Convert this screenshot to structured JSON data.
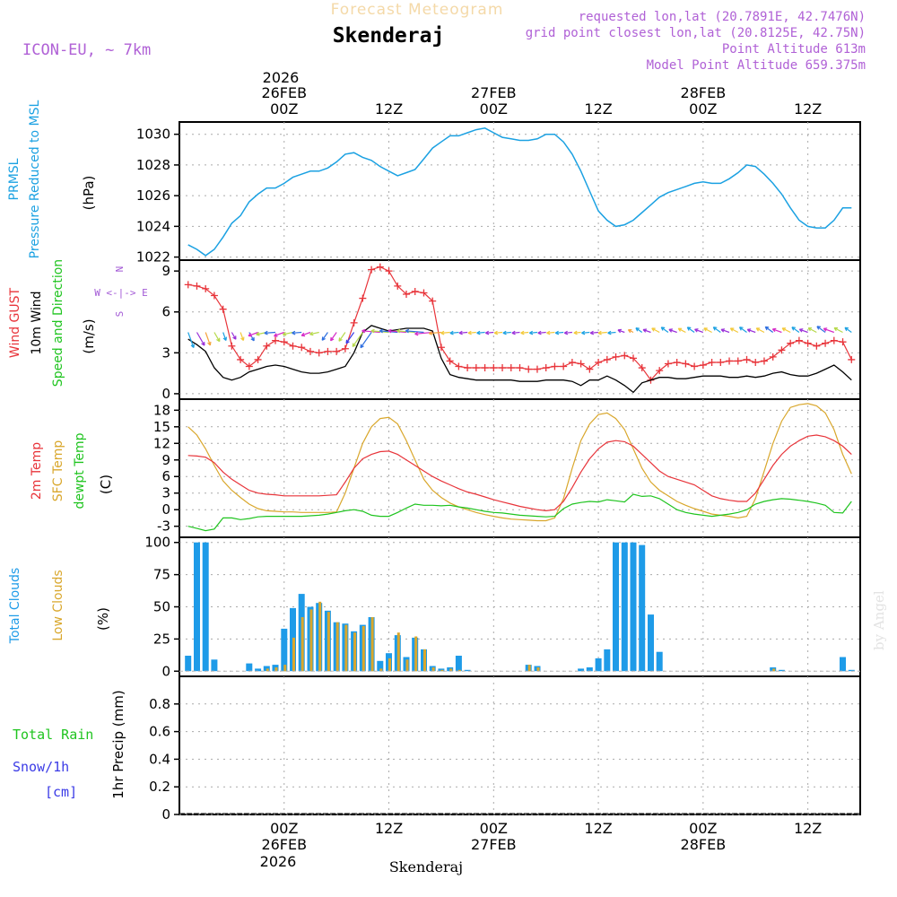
{
  "header": {
    "subtitle": "Forecast Meteogram",
    "location": "Skenderaj",
    "model": "ICON-EU, ~ 7km",
    "requested": "requested lon,lat (20.7891E, 42.7476N)",
    "gridpoint": "grid point closest lon,lat (20.8125E, 42.75N)",
    "point_alt": "Point Altitude 613m",
    "model_alt": "Model Point Altitude 659.375m",
    "credit": "by Angel",
    "footer": "Skenderaj"
  },
  "time_axis": {
    "top_year": "2026",
    "bottom_year": "2026",
    "ticks": [
      {
        "h": 24,
        "label": "00Z",
        "date": "26FEB"
      },
      {
        "h": 36,
        "label": "12Z",
        "date": ""
      },
      {
        "h": 48,
        "label": "00Z",
        "date": "27FEB"
      },
      {
        "h": 60,
        "label": "12Z",
        "date": ""
      },
      {
        "h": 72,
        "label": "00Z",
        "date": "28FEB"
      },
      {
        "h": 84,
        "label": "12Z",
        "date": ""
      }
    ]
  },
  "colors": {
    "pressure": "#1ba1e2",
    "gust": "#e8343a",
    "wind": "#000000",
    "temp2m": "#e8343a",
    "sfc": "#d9a72c",
    "dewpt": "#1fc41f",
    "total_clouds": "#1e9be8",
    "low_clouds": "#d9a72c",
    "rain": "#1fc41f",
    "snow": "#3a3ae6",
    "compass": "#a35ad6"
  },
  "chart_data": [
    {
      "type": "line",
      "title": "PRMSL Pressure Reduced to MSL",
      "ylabel": "(hPa)",
      "label_lines": [
        "PRMSL",
        "Pressure Reduced to MSL"
      ],
      "ylim": [
        1021.8,
        1030.8
      ],
      "yticks": [
        1022,
        1024,
        1026,
        1028,
        1030
      ],
      "x": [
        13,
        14,
        15,
        16,
        17,
        18,
        19,
        20,
        21,
        22,
        23,
        24,
        25,
        26,
        27,
        28,
        29,
        30,
        31,
        32,
        33,
        34,
        35,
        36,
        37,
        38,
        39,
        40,
        41,
        42,
        43,
        44,
        45,
        46,
        47,
        48,
        49,
        50,
        51,
        52,
        53,
        54,
        55,
        56,
        57,
        58,
        59,
        60,
        61,
        62,
        63,
        64,
        65,
        66,
        67,
        68,
        69,
        70,
        71,
        72,
        73,
        74,
        75,
        76,
        77,
        78,
        79,
        80,
        81,
        82,
        83,
        84,
        85,
        86,
        87,
        88,
        89
      ],
      "series": [
        {
          "name": "Pressure",
          "values": [
            1022.8,
            1022.5,
            1022.1,
            1022.5,
            1023.3,
            1024.2,
            1024.7,
            1025.6,
            1026.1,
            1026.5,
            1026.5,
            1026.8,
            1027.2,
            1027.4,
            1027.6,
            1027.6,
            1027.8,
            1028.2,
            1028.7,
            1028.8,
            1028.5,
            1028.3,
            1027.9,
            1027.6,
            1027.3,
            1027.5,
            1027.7,
            1028.4,
            1029.1,
            1029.5,
            1029.9,
            1029.9,
            1030.1,
            1030.3,
            1030.4,
            1030.1,
            1029.8,
            1029.7,
            1029.6,
            1029.6,
            1029.7,
            1030.0,
            1030.0,
            1029.5,
            1028.7,
            1027.6,
            1026.3,
            1025.0,
            1024.4,
            1024.0,
            1024.1,
            1024.4,
            1024.9,
            1025.4,
            1025.9,
            1026.2,
            1026.4,
            1026.6,
            1026.8,
            1026.9,
            1026.8,
            1026.8,
            1027.1,
            1027.5,
            1028.0,
            1027.9,
            1027.4,
            1026.8,
            1026.1,
            1025.2,
            1024.4,
            1024.0,
            1023.9,
            1023.9,
            1024.4,
            1025.2,
            1025.2
          ]
        }
      ]
    },
    {
      "type": "line",
      "title": "Wind GUST / 10m Wind Speed and Direction",
      "ylabel": "(m/s)",
      "label_lines": [
        "Wind GUST",
        "10m Wind",
        "Speed and Direction"
      ],
      "compass": [
        "N",
        "W <-|-> E",
        "S"
      ],
      "ylim": [
        -0.4,
        9.8
      ],
      "yticks": [
        0,
        3,
        6,
        9
      ],
      "x": [
        13,
        14,
        15,
        16,
        17,
        18,
        19,
        20,
        21,
        22,
        23,
        24,
        25,
        26,
        27,
        28,
        29,
        30,
        31,
        32,
        33,
        34,
        35,
        36,
        37,
        38,
        39,
        40,
        41,
        42,
        43,
        44,
        45,
        46,
        47,
        48,
        49,
        50,
        51,
        52,
        53,
        54,
        55,
        56,
        57,
        58,
        59,
        60,
        61,
        62,
        63,
        64,
        65,
        66,
        67,
        68,
        69,
        70,
        71,
        72,
        73,
        74,
        75,
        76,
        77,
        78,
        79,
        80,
        81,
        82,
        83,
        84,
        85,
        86,
        87,
        88,
        89
      ],
      "series": [
        {
          "name": "Wind GUST",
          "values": [
            8.0,
            7.9,
            7.7,
            7.2,
            6.2,
            3.5,
            2.5,
            2.0,
            2.5,
            3.5,
            3.9,
            3.8,
            3.5,
            3.4,
            3.1,
            3.0,
            3.1,
            3.1,
            3.3,
            5.2,
            7.0,
            9.1,
            9.3,
            9.0,
            7.9,
            7.3,
            7.5,
            7.4,
            6.8,
            3.4,
            2.4,
            2.0,
            1.9,
            1.9,
            1.9,
            1.9,
            1.9,
            1.9,
            1.9,
            1.8,
            1.8,
            1.9,
            2.0,
            2.0,
            2.3,
            2.2,
            1.8,
            2.3,
            2.5,
            2.7,
            2.8,
            2.6,
            1.9,
            1.0,
            1.7,
            2.2,
            2.3,
            2.2,
            2.0,
            2.1,
            2.3,
            2.3,
            2.4,
            2.4,
            2.5,
            2.3,
            2.4,
            2.7,
            3.2,
            3.7,
            3.9,
            3.7,
            3.5,
            3.7,
            3.9,
            3.8,
            2.5
          ]
        },
        {
          "name": "10m Wind",
          "values": [
            4.0,
            3.6,
            3.1,
            1.9,
            1.2,
            1.0,
            1.2,
            1.6,
            1.8,
            2.0,
            2.1,
            2.0,
            1.8,
            1.6,
            1.5,
            1.5,
            1.6,
            1.8,
            2.0,
            3.0,
            4.5,
            5.0,
            4.8,
            4.6,
            4.7,
            4.8,
            4.8,
            4.8,
            4.6,
            2.6,
            1.4,
            1.2,
            1.1,
            1.0,
            1.0,
            1.0,
            1.0,
            1.0,
            0.9,
            0.9,
            0.9,
            1.0,
            1.0,
            1.0,
            0.9,
            0.6,
            1.0,
            1.0,
            1.3,
            1.0,
            0.6,
            0.1,
            0.8,
            1.0,
            1.2,
            1.2,
            1.1,
            1.1,
            1.2,
            1.3,
            1.3,
            1.3,
            1.2,
            1.2,
            1.3,
            1.2,
            1.3,
            1.5,
            1.6,
            1.4,
            1.3,
            1.3,
            1.5,
            1.8,
            2.1,
            1.6,
            1.0
          ]
        }
      ]
    },
    {
      "type": "line",
      "title": "2m Temp / SFC Temp / dewpt Temp",
      "ylabel": "(C)",
      "label_lines": [
        "2m Temp",
        "SFC Temp",
        "dewpt Temp"
      ],
      "ylim": [
        -5,
        20
      ],
      "yticks": [
        -3,
        0,
        3,
        6,
        9,
        12,
        15,
        18
      ],
      "x": [
        13,
        14,
        15,
        16,
        17,
        18,
        19,
        20,
        21,
        22,
        23,
        24,
        25,
        26,
        27,
        28,
        29,
        30,
        31,
        32,
        33,
        34,
        35,
        36,
        37,
        38,
        39,
        40,
        41,
        42,
        43,
        44,
        45,
        46,
        47,
        48,
        49,
        50,
        51,
        52,
        53,
        54,
        55,
        56,
        57,
        58,
        59,
        60,
        61,
        62,
        63,
        64,
        65,
        66,
        67,
        68,
        69,
        70,
        71,
        72,
        73,
        74,
        75,
        76,
        77,
        78,
        79,
        80,
        81,
        82,
        83,
        84,
        85,
        86,
        87,
        88,
        89
      ],
      "series": [
        {
          "name": "2m Temp",
          "values": [
            9.8,
            9.7,
            9.5,
            8.5,
            6.8,
            5.5,
            4.5,
            3.5,
            3.0,
            2.8,
            2.7,
            2.5,
            2.5,
            2.5,
            2.5,
            2.5,
            2.6,
            2.7,
            5.0,
            7.5,
            9.2,
            10.0,
            10.5,
            10.6,
            10.0,
            9.0,
            8.0,
            7.0,
            6.0,
            5.2,
            4.5,
            3.8,
            3.2,
            2.8,
            2.3,
            1.8,
            1.4,
            1.0,
            0.6,
            0.3,
            0.0,
            -0.2,
            0.0,
            1.5,
            4.0,
            6.8,
            9.2,
            11.0,
            12.2,
            12.5,
            12.3,
            11.5,
            10.0,
            8.5,
            7.0,
            6.0,
            5.5,
            5.0,
            4.5,
            3.5,
            2.5,
            2.0,
            1.7,
            1.5,
            1.5,
            3.0,
            5.5,
            8.0,
            10.0,
            11.5,
            12.5,
            13.3,
            13.5,
            13.2,
            12.5,
            11.5,
            10.0
          ]
        },
        {
          "name": "SFC Temp",
          "values": [
            15.0,
            13.5,
            11.0,
            8.0,
            5.2,
            3.5,
            2.2,
            1.0,
            0.2,
            -0.2,
            -0.3,
            -0.4,
            -0.4,
            -0.5,
            -0.5,
            -0.5,
            -0.5,
            -0.4,
            3.0,
            7.5,
            12.0,
            15.0,
            16.5,
            16.7,
            15.5,
            12.5,
            9.0,
            5.5,
            3.5,
            2.2,
            1.2,
            0.5,
            0.0,
            -0.5,
            -0.9,
            -1.2,
            -1.5,
            -1.7,
            -1.8,
            -1.9,
            -2.0,
            -2.0,
            -1.5,
            2.0,
            7.5,
            12.5,
            15.5,
            17.2,
            17.5,
            16.5,
            14.5,
            11.0,
            7.5,
            5.0,
            3.5,
            2.5,
            1.5,
            0.8,
            0.2,
            -0.3,
            -0.8,
            -1.0,
            -1.2,
            -1.5,
            -1.2,
            2.0,
            7.0,
            12.0,
            16.0,
            18.5,
            19.0,
            19.2,
            18.8,
            17.5,
            14.5,
            10.0,
            6.5
          ]
        },
        {
          "name": "dewpt Temp",
          "values": [
            -3.0,
            -3.4,
            -3.8,
            -3.5,
            -1.5,
            -1.5,
            -1.8,
            -1.6,
            -1.3,
            -1.2,
            -1.2,
            -1.2,
            -1.2,
            -1.2,
            -1.1,
            -1.0,
            -0.8,
            -0.5,
            -0.2,
            0.0,
            -0.3,
            -1.0,
            -1.2,
            -1.2,
            -0.5,
            0.3,
            1.0,
            0.8,
            0.8,
            0.7,
            0.8,
            0.5,
            0.3,
            0.0,
            -0.3,
            -0.5,
            -0.6,
            -0.8,
            -1.0,
            -1.1,
            -1.2,
            -1.3,
            -1.2,
            0.2,
            1.0,
            1.3,
            1.5,
            1.4,
            1.8,
            1.6,
            1.4,
            2.8,
            2.4,
            2.5,
            2.0,
            1.0,
            0.0,
            -0.5,
            -0.8,
            -1.0,
            -1.2,
            -1.0,
            -0.8,
            -0.5,
            0.0,
            1.0,
            1.5,
            1.8,
            2.0,
            1.9,
            1.7,
            1.5,
            1.2,
            0.8,
            -0.5,
            -0.6,
            1.5
          ]
        }
      ]
    },
    {
      "type": "bar",
      "title": "Total Clouds / Low Clouds",
      "ylabel": "(%)",
      "label_lines": [
        "Total Clouds",
        "Low Clouds"
      ],
      "ylim": [
        -4,
        104
      ],
      "yticks": [
        0,
        25,
        50,
        75,
        100
      ],
      "x": [
        13,
        14,
        15,
        16,
        17,
        18,
        19,
        20,
        21,
        22,
        23,
        24,
        25,
        26,
        27,
        28,
        29,
        30,
        31,
        32,
        33,
        34,
        35,
        36,
        37,
        38,
        39,
        40,
        41,
        42,
        43,
        44,
        45,
        46,
        47,
        48,
        49,
        50,
        51,
        52,
        53,
        54,
        55,
        56,
        57,
        58,
        59,
        60,
        61,
        62,
        63,
        64,
        65,
        66,
        67,
        68,
        69,
        70,
        71,
        72,
        73,
        74,
        75,
        76,
        77,
        78,
        79,
        80,
        81,
        82,
        83,
        84,
        85,
        86,
        87,
        88,
        89
      ],
      "series": [
        {
          "name": "Total Clouds",
          "values": [
            12,
            100,
            100,
            9,
            0,
            0,
            0,
            6,
            2,
            4,
            5,
            33,
            49,
            60,
            50,
            53,
            47,
            38,
            37,
            31,
            36,
            42,
            8,
            14,
            28,
            11,
            26,
            17,
            4,
            2,
            3,
            12,
            1,
            0,
            0,
            0,
            0,
            0,
            0,
            5,
            4,
            0,
            0,
            0,
            0,
            2,
            3,
            10,
            17,
            100,
            100,
            100,
            98,
            44,
            15,
            0,
            0,
            0,
            0,
            0,
            0,
            0,
            0,
            0,
            0,
            0,
            0,
            3,
            1,
            0,
            0,
            0,
            0,
            0,
            0,
            11,
            1
          ]
        },
        {
          "name": "Low Clouds",
          "values": [
            0,
            0,
            0,
            0,
            0,
            0,
            0,
            0,
            0,
            2,
            3,
            5,
            26,
            42,
            48,
            54,
            46,
            38,
            36,
            30,
            35,
            42,
            2,
            10,
            30,
            9,
            27,
            17,
            3,
            1,
            2,
            1,
            0,
            0,
            0,
            0,
            0,
            0,
            0,
            5,
            3,
            0,
            0,
            0,
            0,
            0,
            0,
            0,
            0,
            0,
            0,
            0,
            0,
            0,
            0,
            0,
            0,
            0,
            0,
            0,
            0,
            0,
            0,
            0,
            0,
            0,
            0,
            2,
            0,
            0,
            0,
            0,
            0,
            0,
            0,
            0,
            0
          ]
        }
      ]
    },
    {
      "type": "bar",
      "title": "Total Rain / Snow 1hr Precip",
      "ylabel": "1hr Precip (mm)",
      "label_lines": [
        "Total  Rain",
        "Snow/1h",
        "[cm]"
      ],
      "ylim": [
        0,
        1.0
      ],
      "yticks": [
        0,
        0.2,
        0.4,
        0.6,
        0.8
      ],
      "ytick_labels": [
        "0",
        "0.2",
        "0.4",
        "0.6",
        "0.8"
      ],
      "x": [
        13,
        89
      ],
      "series": [
        {
          "name": "Total Rain",
          "values": [
            0,
            0
          ]
        },
        {
          "name": "Snow",
          "values": [
            0,
            0
          ]
        }
      ]
    }
  ]
}
